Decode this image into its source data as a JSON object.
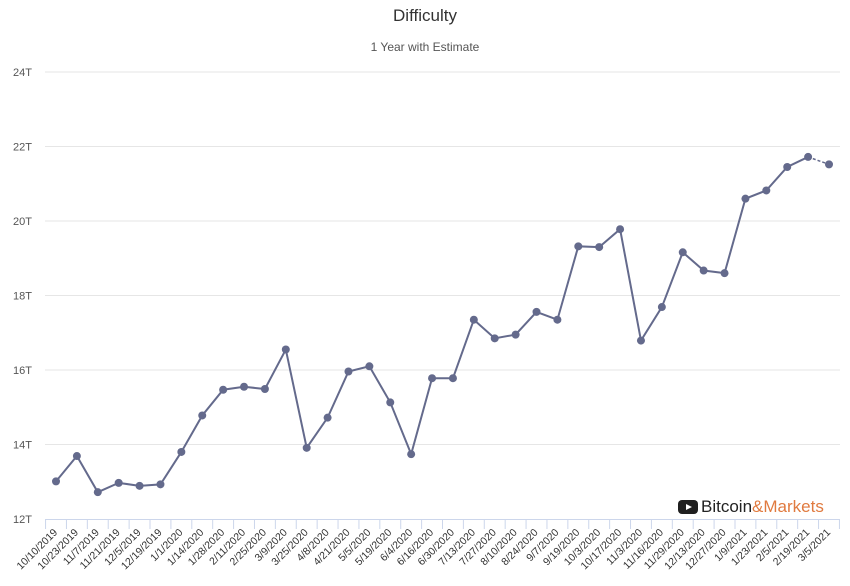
{
  "chart_data": {
    "type": "line",
    "title": "Difficulty",
    "subtitle": "1 Year with Estimate",
    "xlabel": "",
    "ylabel": "",
    "ylim": [
      12,
      24
    ],
    "y_tick_values": [
      12,
      14,
      16,
      18,
      20,
      22,
      24
    ],
    "y_tick_labels": [
      "12T",
      "14T",
      "16T",
      "18T",
      "20T",
      "22T",
      "24T"
    ],
    "grid": "horizontal",
    "line_color": "#646a8c",
    "categories": [
      "10/10/2019",
      "10/23/2019",
      "11/7/2019",
      "11/21/2019",
      "12/5/2019",
      "12/19/2019",
      "1/1/2020",
      "1/14/2020",
      "1/28/2020",
      "2/11/2020",
      "2/25/2020",
      "3/9/2020",
      "3/25/2020",
      "4/8/2020",
      "4/21/2020",
      "5/5/2020",
      "5/19/2020",
      "6/4/2020",
      "6/16/2020",
      "6/30/2020",
      "7/13/2020",
      "7/27/2020",
      "8/10/2020",
      "8/24/2020",
      "9/7/2020",
      "9/19/2020",
      "10/3/2020",
      "10/17/2020",
      "11/3/2020",
      "11/16/2020",
      "11/29/2020",
      "12/13/2020",
      "12/27/2020",
      "1/9/2021",
      "1/23/2021",
      "2/5/2021",
      "2/19/2021",
      "3/5/2021"
    ],
    "series": [
      {
        "values": [
          13.01,
          13.69,
          12.72,
          12.97,
          12.89,
          12.93,
          13.8,
          14.78,
          15.47,
          15.55,
          15.49,
          16.55,
          13.91,
          14.72,
          15.96,
          16.1,
          15.13,
          13.74,
          15.78,
          15.78,
          17.35,
          16.85,
          16.95,
          17.56,
          17.35,
          19.32,
          19.3,
          19.78,
          16.79,
          17.69,
          19.16,
          18.67,
          18.6,
          20.6,
          20.82,
          21.45,
          21.72,
          21.52
        ],
        "estimate_from_index": 36
      }
    ]
  },
  "watermark": {
    "text_part1": "Bitcoin",
    "text_part2": "&Markets",
    "icon": "play-icon",
    "color_part2": "#e07a3f"
  }
}
